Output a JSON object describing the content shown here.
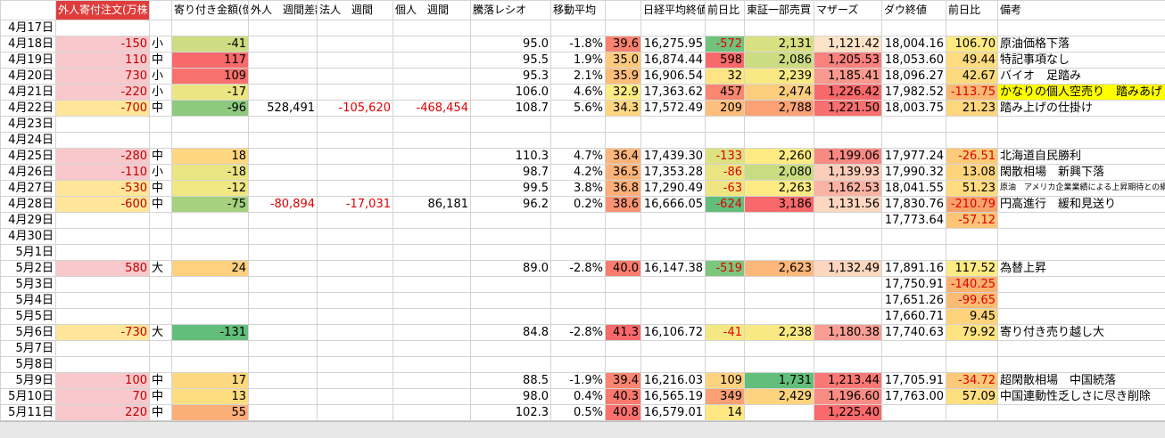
{
  "sheet": {
    "headers": [
      null,
      "外人寄付注文(万株)",
      null,
      "寄り付き金額(億)",
      "外人　週間差額",
      "法人　週間",
      "個人　週間",
      "騰落レシオ",
      "移動平均",
      null,
      "日経平均終値",
      "前日比",
      "東証一部売買",
      "マザーズ",
      "ダウ終値",
      "前日比",
      "備考"
    ],
    "rows": [
      [
        "4月17日",
        null,
        null,
        null,
        null,
        null,
        null,
        null,
        null,
        null,
        null,
        null,
        null,
        null,
        null,
        null,
        null
      ],
      [
        "4月18日",
        "-150",
        "小",
        "-41",
        null,
        null,
        null,
        "95.0",
        "-1.8%",
        "39.6",
        "16,275.95",
        "-572",
        "2,131",
        "1,121.42",
        "18,004.16",
        "106.70",
        "原油価格下落"
      ],
      [
        "4月19日",
        "110",
        "中",
        "117",
        null,
        null,
        null,
        "95.5",
        "1.9%",
        "35.0",
        "16,874.44",
        "598",
        "2,086",
        "1,205.53",
        "18,053.60",
        "49.44",
        "特記事項なし"
      ],
      [
        "4月20日",
        "730",
        "小",
        "109",
        null,
        null,
        null,
        "95.3",
        "2.1%",
        "35.9",
        "16,906.54",
        "32",
        "2,239",
        "1,185.41",
        "18,096.27",
        "42.67",
        "バイオ　足踏み"
      ],
      [
        "4月21日",
        "-220",
        "小",
        "-17",
        null,
        null,
        null,
        "106.0",
        "4.6%",
        "32.9",
        "17,363.62",
        "457",
        "2,474",
        "1,226.42",
        "17,982.52",
        "-113.75",
        "かなりの個人空売り　踏みあげ"
      ],
      [
        "4月22日",
        "-700",
        "中",
        "-96",
        "528,491",
        "-105,620",
        "-468,454",
        "108.7",
        "5.6%",
        "34.3",
        "17,572.49",
        "209",
        "2,788",
        "1,221.50",
        "18,003.75",
        "21.23",
        "踏み上げの仕掛け"
      ],
      [
        "4月23日",
        null,
        null,
        null,
        null,
        null,
        null,
        null,
        null,
        null,
        null,
        null,
        null,
        null,
        null,
        null,
        null
      ],
      [
        "4月24日",
        null,
        null,
        null,
        null,
        null,
        null,
        null,
        null,
        null,
        null,
        null,
        null,
        null,
        null,
        null,
        null
      ],
      [
        "4月25日",
        "-280",
        "中",
        "18",
        null,
        null,
        null,
        "110.3",
        "4.7%",
        "36.4",
        "17,439.30",
        "-133",
        "2,260",
        "1,199.06",
        "17,977.24",
        "-26.51",
        "北海道自民勝利"
      ],
      [
        "4月26日",
        "-110",
        "小",
        "-18",
        null,
        null,
        null,
        "98.7",
        "4.2%",
        "36.5",
        "17,353.28",
        "-86",
        "2,080",
        "1,139.93",
        "17,990.32",
        "13.08",
        "閑散相場　新興下落"
      ],
      [
        "4月27日",
        "-530",
        "中",
        "-12",
        null,
        null,
        null,
        "99.5",
        "3.8%",
        "36.8",
        "17,290.49",
        "-63",
        "2,263",
        "1,162.53",
        "18,041.55",
        "51.23",
        "原油　アメリカ企業業績による上昇期待との綱"
      ],
      [
        "4月28日",
        "-600",
        "中",
        "-75",
        "-80,894",
        "-17,031",
        "86,181",
        "96.2",
        "0.2%",
        "38.6",
        "16,666.05",
        "-624",
        "3,186",
        "1,131.56",
        "17,830.76",
        "-210.79",
        "円高進行　緩和見送り"
      ],
      [
        "4月29日",
        null,
        null,
        null,
        null,
        null,
        null,
        null,
        null,
        null,
        null,
        null,
        null,
        null,
        "17,773.64",
        "-57.12",
        null
      ],
      [
        "4月30日",
        null,
        null,
        null,
        null,
        null,
        null,
        null,
        null,
        null,
        null,
        null,
        null,
        null,
        null,
        null,
        null
      ],
      [
        "5月1日",
        null,
        null,
        null,
        null,
        null,
        null,
        null,
        null,
        null,
        null,
        null,
        null,
        null,
        null,
        null,
        null
      ],
      [
        "5月2日",
        "580",
        "大",
        "24",
        null,
        null,
        null,
        "89.0",
        "-2.8%",
        "40.0",
        "16,147.38",
        "-519",
        "2,623",
        "1,132.49",
        "17,891.16",
        "117.52",
        "為替上昇"
      ],
      [
        "5月3日",
        null,
        null,
        null,
        null,
        null,
        null,
        null,
        null,
        null,
        null,
        null,
        null,
        null,
        "17,750.91",
        "-140.25",
        null
      ],
      [
        "5月4日",
        null,
        null,
        null,
        null,
        null,
        null,
        null,
        null,
        null,
        null,
        null,
        null,
        null,
        "17,651.26",
        "-99.65",
        null
      ],
      [
        "5月5日",
        null,
        null,
        null,
        null,
        null,
        null,
        null,
        null,
        null,
        null,
        null,
        null,
        null,
        "17,660.71",
        "9.45",
        null
      ],
      [
        "5月6日",
        "-730",
        "大",
        "-131",
        null,
        null,
        null,
        "84.8",
        "-2.8%",
        "41.3",
        "16,106.72",
        "-41",
        "2,238",
        "1,180.38",
        "17,740.63",
        "79.92",
        "寄り付き売り越し大"
      ],
      [
        "5月7日",
        null,
        null,
        null,
        null,
        null,
        null,
        null,
        null,
        null,
        null,
        null,
        null,
        null,
        null,
        null,
        null
      ],
      [
        "5月8日",
        null,
        null,
        null,
        null,
        null,
        null,
        null,
        null,
        null,
        null,
        null,
        null,
        null,
        null,
        null,
        null
      ],
      [
        "5月9日",
        "100",
        "中",
        "17",
        null,
        null,
        null,
        "88.5",
        "-1.9%",
        "39.4",
        "16,216.03",
        "109",
        "1,731",
        "1,213.44",
        "17,705.91",
        "-34.72",
        "超閑散相場　中国続落"
      ],
      [
        "5月10日",
        "70",
        "中",
        "13",
        null,
        null,
        null,
        "98.0",
        "0.4%",
        "40.3",
        "16,565.19",
        "349",
        "2,429",
        "1,196.60",
        "17,763.00",
        "57.09",
        "中国連動性乏しさに尽き削除"
      ],
      [
        "5月11日",
        "220",
        "中",
        "55",
        null,
        null,
        null,
        "102.3",
        "0.5%",
        "40.8",
        "16,579.01",
        "14",
        null,
        "1,225.40",
        null,
        null,
        null
      ]
    ],
    "note_highlight": {
      "date": "4月21日",
      "color": "#ffff00"
    }
  }
}
